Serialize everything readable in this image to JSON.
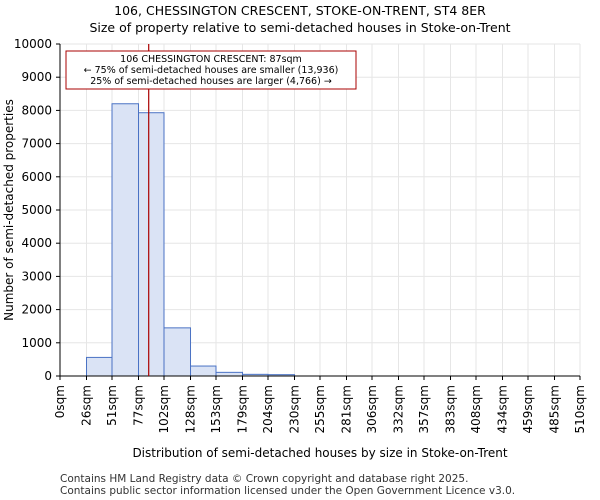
{
  "title_line1": "106, CHESSINGTON CRESCENT, STOKE-ON-TRENT, ST4 8ER",
  "title_line2": "Size of property relative to semi-detached houses in Stoke-on-Trent",
  "footer_line1": "Contains HM Land Registry data © Crown copyright and database right 2025.",
  "footer_line2": "Contains public sector information licensed under the Open Government Licence v3.0.",
  "colors": {
    "bar_fill": "#dae3f5",
    "bar_stroke": "#4a72c4",
    "marker": "#aa0000",
    "annotation_border": "#aa0000"
  },
  "chart_data": {
    "type": "bar",
    "title": "Size of property relative to semi-detached houses in Stoke-on-Trent",
    "xlabel": "Distribution of semi-detached houses by size in Stoke-on-Trent",
    "ylabel": "Number of semi-detached properties",
    "ylim": [
      0,
      10000
    ],
    "yticks": [
      0,
      1000,
      2000,
      3000,
      4000,
      5000,
      6000,
      7000,
      8000,
      9000,
      10000
    ],
    "bin_edges": [
      0,
      26,
      51,
      77,
      102,
      128,
      153,
      179,
      204,
      230,
      255,
      281,
      306,
      332,
      357,
      383,
      408,
      434,
      459,
      485,
      510
    ],
    "xtick_labels": [
      "0sqm",
      "26sqm",
      "51sqm",
      "77sqm",
      "102sqm",
      "128sqm",
      "153sqm",
      "179sqm",
      "204sqm",
      "230sqm",
      "255sqm",
      "281sqm",
      "306sqm",
      "332sqm",
      "357sqm",
      "383sqm",
      "408sqm",
      "434sqm",
      "459sqm",
      "485sqm",
      "510sqm"
    ],
    "values": [
      0,
      560,
      8200,
      7930,
      1450,
      300,
      110,
      50,
      40,
      0,
      0,
      0,
      0,
      0,
      0,
      0,
      0,
      0,
      0,
      0
    ],
    "marker": {
      "value": 87,
      "unit": "sqm"
    },
    "annotation": {
      "line1": "106 CHESSINGTON CRESCENT: 87sqm",
      "line2": "← 75% of semi-detached houses are smaller (13,936)",
      "line3": "25% of semi-detached houses are larger (4,766) →"
    }
  }
}
